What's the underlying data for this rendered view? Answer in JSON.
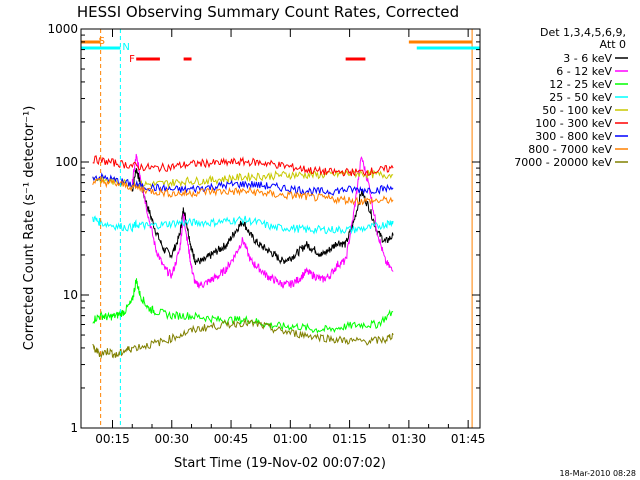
{
  "chart_data": {
    "type": "line",
    "title": "HESSI Observing Summary Count Rates, Corrected",
    "xlabel": "Start Time (19-Nov-02 00:07:02)",
    "ylabel": "Corrected Count Rate (s⁻¹ detector⁻¹)",
    "y_scale": "log",
    "ylim": [
      1,
      1000
    ],
    "xlim_minutes": [
      7.03,
      108.0
    ],
    "x_ticks": [
      {
        "label": "00:15",
        "m": 15
      },
      {
        "label": "00:30",
        "m": 30
      },
      {
        "label": "00:45",
        "m": 45
      },
      {
        "label": "01:00",
        "m": 60
      },
      {
        "label": "01:15",
        "m": 75
      },
      {
        "label": "01:30",
        "m": 90
      },
      {
        "label": "01:45",
        "m": 105
      }
    ],
    "y_ticks": [
      {
        "label": "1",
        "v": 1
      },
      {
        "label": "10",
        "v": 10
      },
      {
        "label": "100",
        "v": 100
      },
      {
        "label": "1000",
        "v": 1000
      }
    ],
    "legend": {
      "header": [
        "Det 1,3,4,5,6,9,",
        "Att 0"
      ],
      "placement": "right"
    },
    "series": [
      {
        "name": "3 - 6 keV",
        "color": "#000000",
        "x": [
          20,
          21,
          22,
          24,
          26,
          28,
          30,
          32,
          33,
          34,
          35,
          36,
          38,
          40,
          42,
          44,
          46,
          48,
          50,
          52,
          54,
          56,
          58,
          60,
          62,
          64,
          66,
          68,
          70,
          72,
          74,
          76,
          78,
          80,
          82,
          84,
          86
        ],
        "y": [
          60,
          90,
          70,
          45,
          30,
          22,
          20,
          28,
          45,
          32,
          22,
          18,
          18,
          20,
          22,
          24,
          30,
          36,
          28,
          24,
          22,
          20,
          18,
          19,
          21,
          24,
          22,
          20,
          22,
          25,
          24,
          35,
          60,
          45,
          30,
          25,
          28
        ]
      },
      {
        "name": "6 - 12 keV",
        "color": "#ff00ff",
        "x": [
          20,
          21,
          22,
          24,
          26,
          28,
          30,
          32,
          33,
          34,
          35,
          36,
          38,
          40,
          42,
          44,
          46,
          48,
          50,
          52,
          54,
          56,
          58,
          60,
          62,
          64,
          66,
          68,
          70,
          72,
          74,
          76,
          78,
          80,
          82,
          84,
          86
        ],
        "y": [
          70,
          110,
          80,
          40,
          22,
          16,
          14,
          22,
          40,
          25,
          16,
          12,
          12,
          13,
          14,
          16,
          20,
          26,
          18,
          16,
          14,
          13,
          12,
          12,
          13,
          15,
          14,
          13,
          14,
          17,
          18,
          40,
          110,
          65,
          30,
          18,
          15
        ]
      },
      {
        "name": "12 - 25 keV",
        "color": "#00ff00",
        "x": [
          10,
          12,
          14,
          16,
          18,
          20,
          21,
          22,
          24,
          26,
          30,
          34,
          38,
          42,
          46,
          50,
          54,
          58,
          62,
          66,
          70,
          74,
          78,
          82,
          86
        ],
        "y": [
          6.5,
          7,
          6.8,
          7,
          7.5,
          9,
          13,
          10,
          8,
          7.5,
          7,
          7,
          6.8,
          6.5,
          6.5,
          6.5,
          6,
          5.8,
          5.8,
          5.5,
          5.5,
          5.8,
          6,
          6,
          7.5
        ]
      },
      {
        "name": "25 - 50 keV",
        "color": "#00ffff",
        "x": [
          10,
          12,
          16,
          20,
          21,
          24,
          28,
          32,
          36,
          40,
          44,
          48,
          52,
          56,
          60,
          64,
          68,
          72,
          76,
          80,
          84,
          86
        ],
        "y": [
          38,
          35,
          33,
          32,
          34,
          33,
          34,
          35,
          35,
          35,
          36,
          37,
          35,
          32,
          32,
          31,
          31,
          31,
          31,
          32,
          34,
          36
        ]
      },
      {
        "name": "50 - 100 keV",
        "color": "#c8c800",
        "x": [
          10,
          14,
          18,
          22,
          26,
          30,
          34,
          38,
          42,
          46,
          50,
          54,
          58,
          62,
          66,
          70,
          74,
          78,
          82,
          86
        ],
        "y": [
          75,
          72,
          70,
          68,
          68,
          70,
          72,
          72,
          74,
          76,
          78,
          78,
          80,
          80,
          80,
          80,
          82,
          82,
          80,
          80
        ]
      },
      {
        "name": "100 - 300 keV",
        "color": "#ff0000",
        "x": [
          10,
          14,
          18,
          22,
          26,
          30,
          34,
          38,
          42,
          46,
          50,
          54,
          58,
          62,
          66,
          70,
          74,
          78,
          82,
          86
        ],
        "y": [
          105,
          100,
          96,
          92,
          90,
          92,
          96,
          98,
          98,
          100,
          100,
          98,
          94,
          90,
          86,
          84,
          84,
          84,
          86,
          90
        ]
      },
      {
        "name": "300 - 800 keV",
        "color": "#0000ff",
        "x": [
          10,
          14,
          18,
          22,
          26,
          30,
          34,
          38,
          42,
          46,
          50,
          54,
          58,
          62,
          66,
          70,
          74,
          78,
          82,
          86
        ],
        "y": [
          78,
          75,
          70,
          66,
          64,
          62,
          62,
          64,
          66,
          68,
          68,
          66,
          64,
          62,
          60,
          60,
          62,
          62,
          62,
          64
        ]
      },
      {
        "name": "800 - 7000 keV",
        "color": "#ff8000",
        "x": [
          10,
          14,
          18,
          22,
          26,
          30,
          34,
          38,
          42,
          46,
          50,
          54,
          58,
          62,
          66,
          70,
          74,
          78,
          82,
          86
        ],
        "y": [
          72,
          70,
          67,
          63,
          60,
          58,
          58,
          60,
          60,
          60,
          60,
          58,
          56,
          56,
          54,
          53,
          52,
          51,
          51,
          52
        ]
      },
      {
        "name": "7000 - 20000 keV",
        "color": "#808000",
        "x": [
          10,
          12,
          14,
          16,
          18,
          20,
          24,
          28,
          32,
          36,
          40,
          44,
          48,
          52,
          56,
          60,
          64,
          68,
          72,
          76,
          80,
          84,
          86
        ],
        "y": [
          4,
          3.6,
          3.8,
          3.5,
          3.8,
          4,
          4.2,
          4.5,
          5,
          5.5,
          5.8,
          6,
          6.2,
          6,
          5.5,
          5.2,
          5,
          4.8,
          4.6,
          4.5,
          4.5,
          4.6,
          5
        ]
      }
    ],
    "annotations": {
      "S_label": "S",
      "N_label": "N",
      "F_label": "F",
      "saa_intervals_min": [
        [
          7.03,
          12
        ],
        [
          90,
          106
        ]
      ],
      "night_intervals_min": [
        [
          7.03,
          17
        ],
        [
          92,
          108
        ]
      ],
      "flare_intervals_min": [
        [
          21,
          27
        ],
        [
          33,
          35
        ],
        [
          74,
          79
        ]
      ]
    },
    "timestamp": "18-Mar-2010 08:28"
  }
}
